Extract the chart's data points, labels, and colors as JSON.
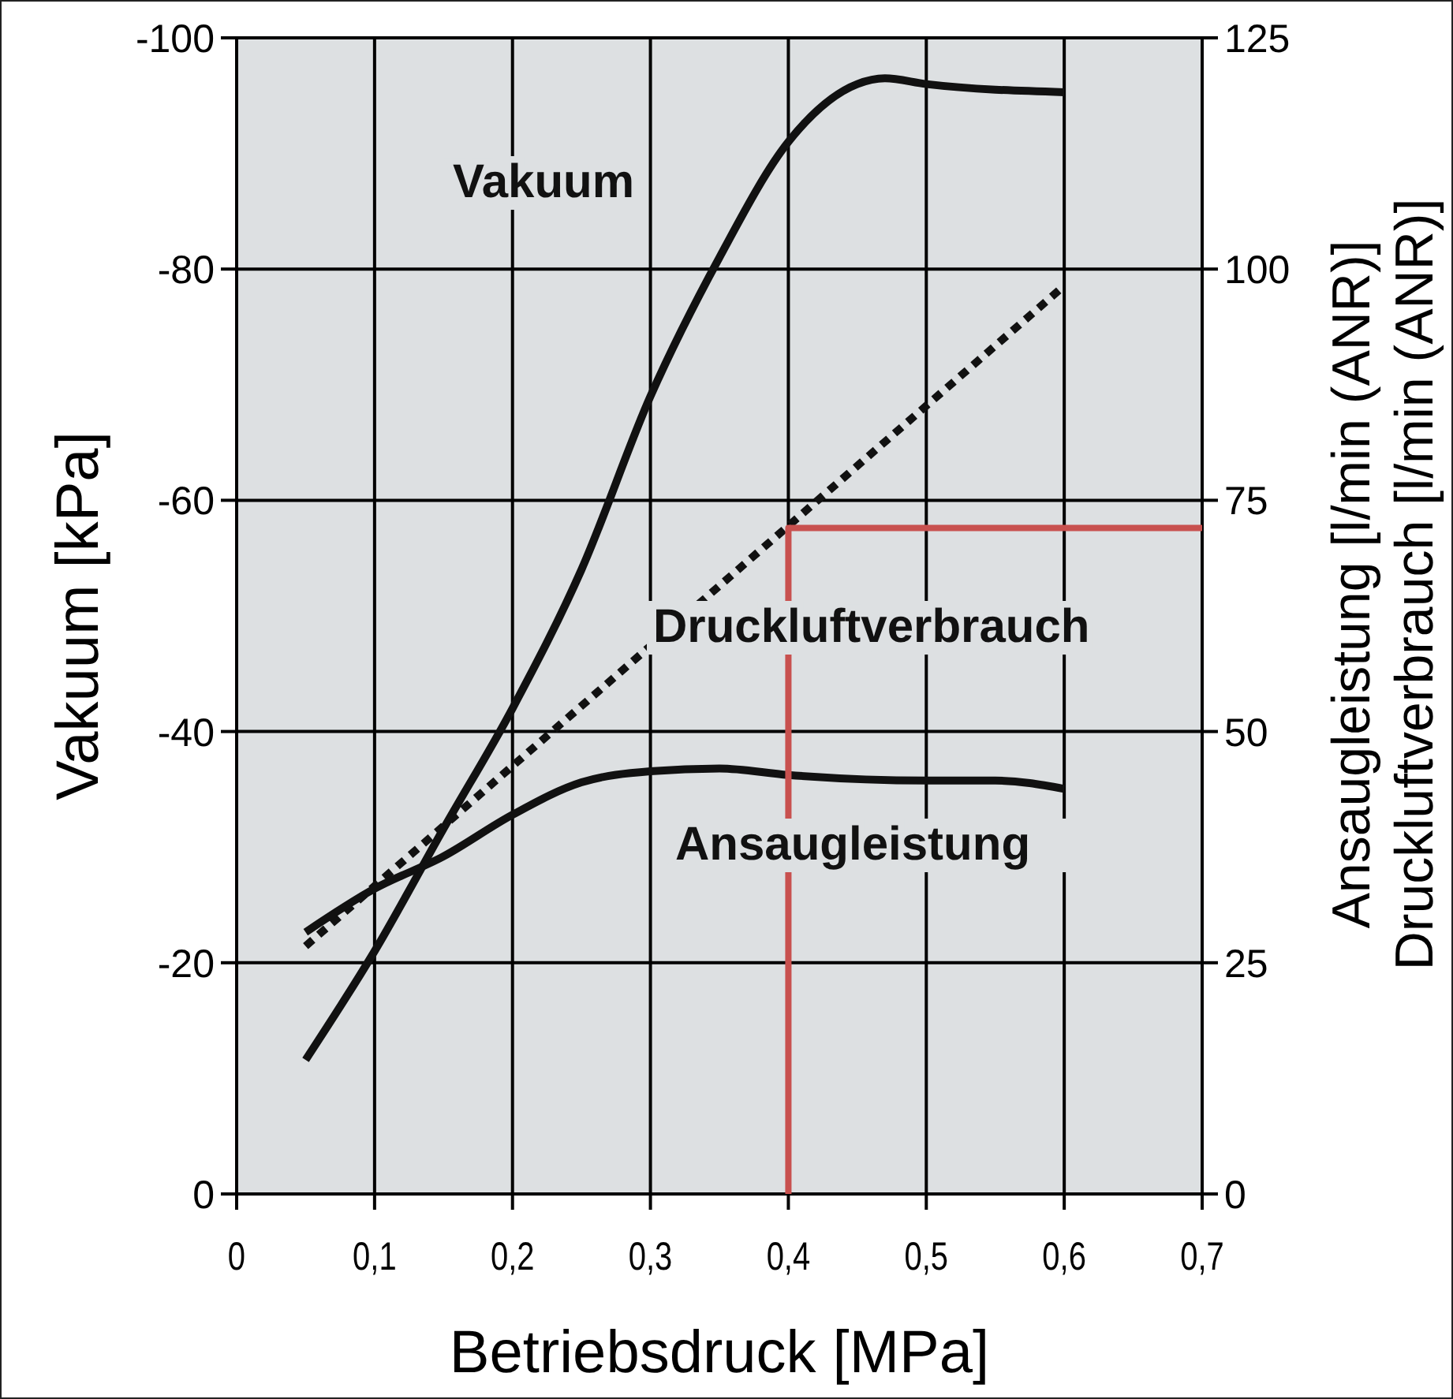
{
  "chart_data": {
    "type": "line",
    "xlabel": "Betriebsdruck [MPa]",
    "ylabel": "Vakuum [kPa]",
    "y2label": "Ansaugleistung [l/min (ANR)]\nDruckluftverbrauch [l/min (ANR)]",
    "xlim": [
      0,
      0.7
    ],
    "xticks": [
      0,
      {
        "value": 0.1,
        "label": "0,1"
      },
      {
        "value": 0.2,
        "label": "0,2"
      },
      {
        "value": 0.3,
        "label": "0,3"
      },
      {
        "value": 0.4,
        "label": "0,4"
      },
      {
        "value": 0.5,
        "label": "0,5"
      },
      {
        "value": 0.6,
        "label": "0,6"
      },
      {
        "value": 0.7,
        "label": "0,7"
      }
    ],
    "ylim": [
      0,
      -100
    ],
    "yticks": [
      0,
      -20,
      -40,
      -60,
      -80,
      -100
    ],
    "y2lim": [
      0,
      125
    ],
    "y2ticks": [
      0,
      25,
      50,
      75,
      100,
      125
    ],
    "grid": true,
    "line_style": "solid",
    "series": [
      {
        "name": "Vakuum",
        "color": "#111111",
        "x": [
          0.05,
          0.1,
          0.15,
          0.2,
          0.25,
          0.3,
          0.35,
          0.4,
          0.45,
          0.47,
          0.5,
          0.6
        ],
        "values": [
          -11.6,
          -21,
          -31.6,
          -42,
          -54,
          -69,
          -81,
          -91,
          -96,
          -96.5,
          -96,
          -95.3
        ]
      },
      {
        "name": "Druckluftverbrauch",
        "color": "#111111",
        "axis": "y2",
        "line_style": "dotted",
        "x": [
          0.05,
          0.6
        ],
        "values": [
          26.8,
          98.2
        ]
      },
      {
        "name": "Ansaugleistung",
        "color": "#111111",
        "axis": "y2",
        "x": [
          0.05,
          0.1,
          0.15,
          0.2,
          0.25,
          0.3,
          0.35,
          0.4,
          0.5,
          0.55,
          0.6
        ],
        "values": [
          28.3,
          33,
          36.5,
          41,
          44.5,
          45.7,
          46,
          45.3,
          44.7,
          44.7,
          43.8
        ]
      },
      {
        "color": "#c8514f",
        "axis": "y2",
        "x": [
          0.4,
          0.4,
          0.7
        ],
        "values": [
          0,
          72,
          72
        ]
      }
    ]
  }
}
